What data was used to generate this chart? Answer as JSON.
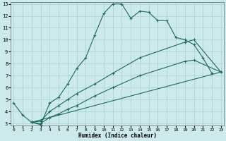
{
  "title": "",
  "xlabel": "Humidex (Indice chaleur)",
  "xlim": [
    0,
    23
  ],
  "ylim": [
    3,
    13
  ],
  "yticks": [
    3,
    4,
    5,
    6,
    7,
    8,
    9,
    10,
    11,
    12,
    13
  ],
  "xticks": [
    0,
    1,
    2,
    3,
    4,
    5,
    6,
    7,
    8,
    9,
    10,
    11,
    12,
    13,
    14,
    15,
    16,
    17,
    18,
    19,
    20,
    21,
    22,
    23
  ],
  "bg_color": "#cdeaea",
  "grid_color": "#aed4d4",
  "line_color": "#1a6b5a",
  "line1_x": [
    0,
    1,
    2,
    3,
    4,
    5,
    6,
    7,
    8,
    9,
    10,
    11,
    12,
    13,
    14,
    15,
    16,
    17,
    18,
    19,
    20,
    21,
    22
  ],
  "line1_y": [
    4.7,
    3.7,
    3.1,
    2.9,
    4.7,
    5.2,
    6.3,
    7.6,
    8.5,
    10.4,
    12.2,
    13.0,
    13.0,
    11.8,
    12.4,
    12.3,
    11.6,
    11.6,
    10.2,
    10.0,
    9.6,
    8.5,
    7.2
  ],
  "line2_x": [
    2,
    3,
    4,
    5,
    6,
    7,
    9,
    11,
    14,
    19,
    20,
    23
  ],
  "line2_y": [
    3.1,
    3.2,
    4.0,
    4.5,
    5.0,
    5.5,
    6.3,
    7.2,
    8.5,
    9.8,
    10.0,
    7.3
  ],
  "line3_x": [
    2,
    3,
    4,
    5,
    6,
    7,
    9,
    11,
    14,
    19,
    20,
    23
  ],
  "line3_y": [
    3.1,
    3.0,
    3.5,
    3.8,
    4.2,
    4.5,
    5.3,
    6.0,
    7.0,
    8.2,
    8.3,
    7.3
  ],
  "line4_x": [
    2,
    23
  ],
  "line4_y": [
    3.1,
    7.3
  ]
}
